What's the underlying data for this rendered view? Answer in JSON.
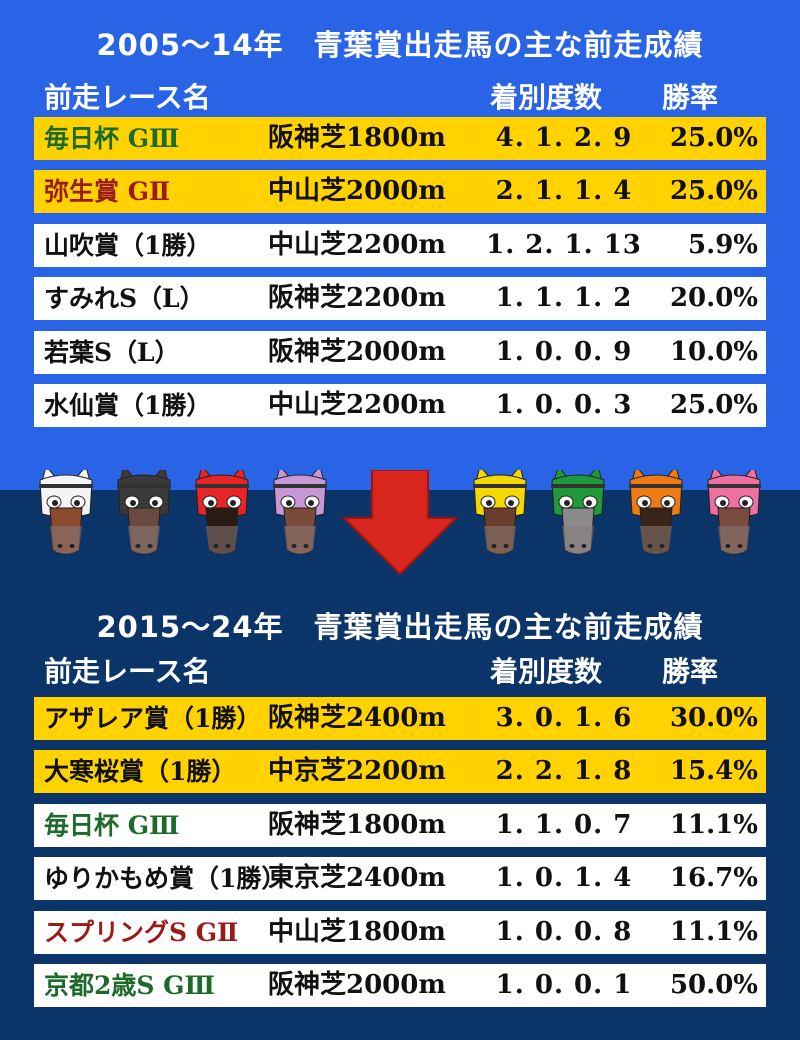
{
  "section1": {
    "title": "2005～14年　青葉賞出走馬の主な前走成績",
    "headers": {
      "race": "前走レース名",
      "record": "着別度数",
      "rate": "勝率"
    },
    "rows": [
      {
        "name": "毎日杯 GⅢ",
        "course": "阪神芝1800m",
        "record": "4. 1. 2. 9",
        "rate": "25.0%",
        "highlight": true,
        "name_color": "green"
      },
      {
        "name": "弥生賞 GⅡ",
        "course": "中山芝2000m",
        "record": "2. 1. 1. 4",
        "rate": "25.0%",
        "highlight": true,
        "name_color": "maroon"
      },
      {
        "name": "山吹賞（1勝）",
        "course": "中山芝2200m",
        "record": "1. 2. 1. 13",
        "rate": "5.9%",
        "highlight": false,
        "name_color": "black"
      },
      {
        "name": "すみれS（L）",
        "course": "阪神芝2200m",
        "record": "1. 1. 1. 2",
        "rate": "20.0%",
        "highlight": false,
        "name_color": "black"
      },
      {
        "name": "若葉S（L）",
        "course": "阪神芝2000m",
        "record": "1. 0. 0. 9",
        "rate": "10.0%",
        "highlight": false,
        "name_color": "black"
      },
      {
        "name": "水仙賞（1勝）",
        "course": "中山芝2200m",
        "record": "1. 0. 0. 3",
        "rate": "25.0%",
        "highlight": false,
        "name_color": "black"
      }
    ]
  },
  "section2": {
    "title": "2015～24年　青葉賞出走馬の主な前走成績",
    "headers": {
      "race": "前走レース名",
      "record": "着別度数",
      "rate": "勝率"
    },
    "rows": [
      {
        "name": "アザレア賞（1勝）",
        "course": "阪神芝2400m",
        "record": "3. 0. 1. 6",
        "rate": "30.0%",
        "highlight": true,
        "name_color": "black"
      },
      {
        "name": "大寒桜賞（1勝）",
        "course": "中京芝2200m",
        "record": "2. 2. 1. 8",
        "rate": "15.4%",
        "highlight": true,
        "name_color": "black"
      },
      {
        "name": "毎日杯 GⅢ",
        "course": "阪神芝1800m",
        "record": "1. 1. 0. 7",
        "rate": "11.1%",
        "highlight": false,
        "name_color": "green"
      },
      {
        "name": "ゆりかもめ賞（1勝）",
        "course": "東京芝2400m",
        "record": "1. 0. 1. 4",
        "rate": "16.7%",
        "highlight": false,
        "name_color": "black"
      },
      {
        "name": "スプリングS GⅡ",
        "course": "中山芝1800m",
        "record": "1. 0. 0. 8",
        "rate": "11.1%",
        "highlight": false,
        "name_color": "maroon"
      },
      {
        "name": "京都2歳S GⅢ",
        "course": "阪神芝2000m",
        "record": "1. 0. 0. 1",
        "rate": "50.0%",
        "highlight": false,
        "name_color": "green"
      }
    ]
  },
  "colors": {
    "top_bg": "#2a64e6",
    "bottom_bg": "#0b3468",
    "highlight": "#ffd200",
    "arrow": "#d9261c",
    "green_text": "#1d6b2a",
    "maroon_text": "#9b1a1a"
  },
  "icons": {
    "horses": [
      {
        "name": "white-horse-icon",
        "hood": "#f4f4f4",
        "face": "#8a4a2e"
      },
      {
        "name": "black-horse-icon",
        "hood": "#3a3a3a",
        "face": "#6a4a3e"
      },
      {
        "name": "red-horse-icon",
        "hood": "#e82424",
        "face": "#2a1a14"
      },
      {
        "name": "violet-horse-icon",
        "hood": "#c797d8",
        "face": "#7a4a38"
      },
      {
        "name": "yellow-horse-icon",
        "hood": "#f4d800",
        "face": "#6a3e2a"
      },
      {
        "name": "green-horse-icon",
        "hood": "#1f9a3a",
        "face": "#8a8a8a"
      },
      {
        "name": "orange-horse-icon",
        "hood": "#f07a12",
        "face": "#3a2418"
      },
      {
        "name": "pink-horse-icon",
        "hood": "#ef6fa0",
        "face": "#7a4a3e"
      }
    ],
    "arrow": "down-arrow-icon"
  }
}
